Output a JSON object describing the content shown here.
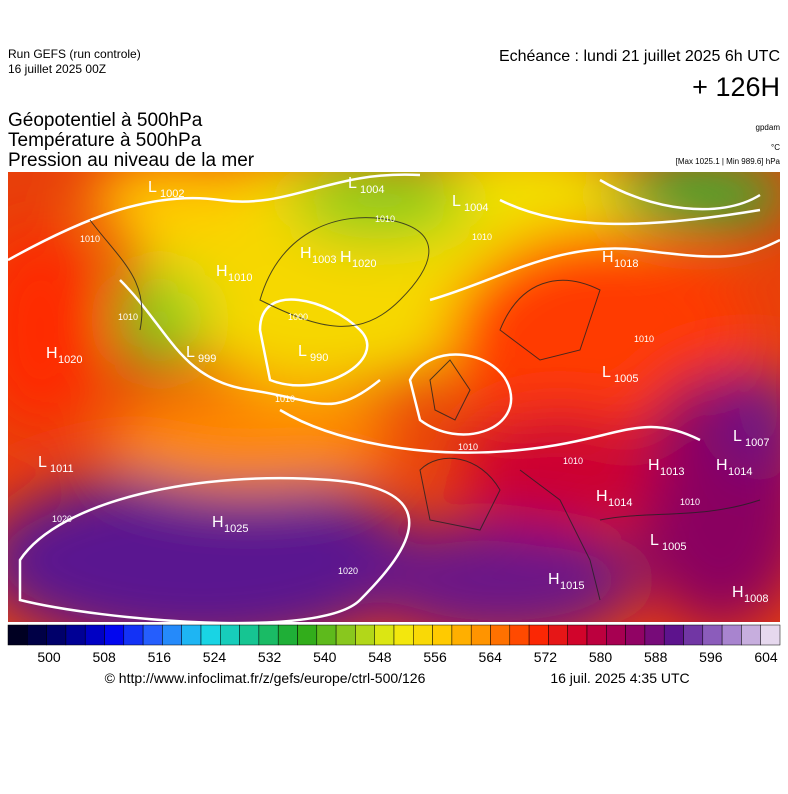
{
  "header": {
    "run": "Run GEFS (run controle)",
    "date": "16 juillet 2025 00Z",
    "echeance": "Echéance : lundi 21 juillet 2025 6h UTC",
    "lead": "+ 126H",
    "titles": [
      "Géopotentiel à 500hPa",
      "Température à 500hPa",
      "Pression au niveau de la mer"
    ],
    "units": [
      "gpdam",
      "°C",
      "[Max 1025.1 | Min 989.6] hPa"
    ]
  },
  "centers": [
    {
      "kind": "L",
      "value": "1002"
    },
    {
      "kind": "L",
      "value": "1004"
    },
    {
      "kind": "L",
      "value": "1004"
    },
    {
      "kind": "H",
      "value": "1010"
    },
    {
      "kind": "H",
      "value": "1003"
    },
    {
      "kind": "H",
      "value": "1020"
    },
    {
      "kind": "H",
      "value": "1018"
    },
    {
      "kind": "H",
      "value": "1020"
    },
    {
      "kind": "L",
      "value": "999"
    },
    {
      "kind": "L",
      "value": "990"
    },
    {
      "kind": "L",
      "value": "1005"
    },
    {
      "kind": "L",
      "value": "1011"
    },
    {
      "kind": "H",
      "value": "1025"
    },
    {
      "kind": "H",
      "value": "1013"
    },
    {
      "kind": "H",
      "value": "1014"
    },
    {
      "kind": "L",
      "value": "1007"
    },
    {
      "kind": "H",
      "value": "1014"
    },
    {
      "kind": "L",
      "value": "1005"
    },
    {
      "kind": "H",
      "value": "1015"
    },
    {
      "kind": "H",
      "value": "1008"
    }
  ],
  "isobar_labels": [
    "1010",
    "1010",
    "1010",
    "1000",
    "1010",
    "1010",
    "1010",
    "1010",
    "1010",
    "1020",
    "1020",
    "1010"
  ],
  "colorbar": {
    "ticks": [
      500,
      508,
      516,
      524,
      532,
      540,
      548,
      556,
      564,
      572,
      580,
      588,
      596,
      604
    ],
    "colors": [
      "#000022",
      "#00007a",
      "#0000ee",
      "#2a6cff",
      "#19d6ee",
      "#16c48a",
      "#22a81a",
      "#8cc81e",
      "#f0ee10",
      "#ffcc00",
      "#ff8a00",
      "#ff2a00",
      "#cc0030",
      "#99005e",
      "#5a1490",
      "#9a72c8",
      "#e6d8ee"
    ]
  },
  "footer": {
    "url": "© http://www.infoclimat.fr/z/gefs/europe/ctrl-500/126",
    "time": "16 juil. 2025  4:35 UTC"
  }
}
